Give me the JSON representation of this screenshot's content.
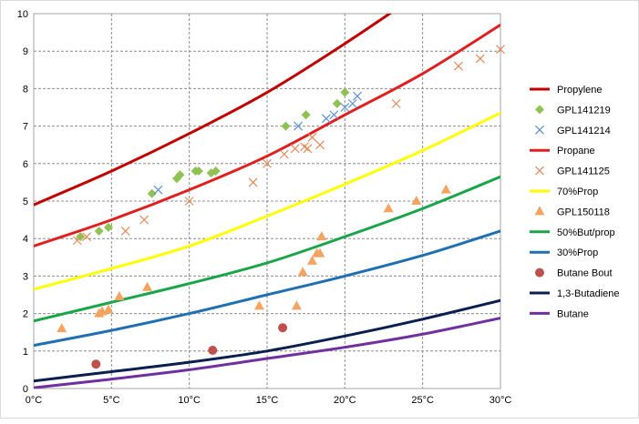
{
  "chart_data": {
    "type": "scatter",
    "title": "",
    "xlabel": "",
    "ylabel": "",
    "xlim": [
      0,
      30
    ],
    "ylim": [
      0,
      10
    ],
    "x_ticks": [
      "0°C",
      "5°C",
      "10°C",
      "15°C",
      "20°C",
      "25°C",
      "30°C"
    ],
    "y_ticks": [
      "0",
      "1",
      "2",
      "3",
      "4",
      "5",
      "6",
      "7",
      "8",
      "9",
      "10"
    ],
    "grid": true,
    "legend_position": "right",
    "series": [
      {
        "name": "Propylene",
        "kind": "line",
        "color": "#c00000",
        "x": [
          0,
          5,
          10,
          15,
          20,
          25
        ],
        "y": [
          4.9,
          5.8,
          6.8,
          7.9,
          9.2,
          10.6
        ]
      },
      {
        "name": "GPL141219",
        "kind": "marker",
        "marker": "diamond",
        "color": "#8fc153",
        "x": [
          3,
          4.2,
          4.8,
          7.6,
          9.2,
          9.4,
          10.4,
          10.6,
          11.4,
          11.7,
          16.2,
          17.5,
          19.5,
          20
        ],
        "y": [
          4.05,
          4.2,
          4.3,
          5.2,
          5.6,
          5.7,
          5.8,
          5.8,
          5.75,
          5.8,
          7.0,
          7.3,
          7.6,
          7.9
        ]
      },
      {
        "name": "GPL141214",
        "kind": "marker",
        "marker": "x",
        "color": "#5b8fd6",
        "x": [
          8,
          17,
          18.8,
          19.3,
          20,
          20.5,
          20.8
        ],
        "y": [
          5.3,
          7.0,
          7.2,
          7.3,
          7.5,
          7.6,
          7.8
        ]
      },
      {
        "name": "Propane",
        "kind": "line",
        "color": "#e02020",
        "x": [
          0,
          5,
          10,
          15,
          20,
          25,
          30
        ],
        "y": [
          3.8,
          4.5,
          5.3,
          6.2,
          7.3,
          8.4,
          9.7
        ]
      },
      {
        "name": "GPL141125",
        "kind": "marker",
        "marker": "x",
        "color": "#e08a5a",
        "x": [
          2.8,
          3.4,
          5.9,
          7.1,
          10,
          14.1,
          15,
          16.1,
          16.8,
          17.4,
          17.6,
          17.9,
          18.4,
          23.3,
          27.3,
          28.7,
          30
        ],
        "y": [
          3.95,
          4.05,
          4.2,
          4.5,
          5.0,
          5.5,
          6.0,
          6.25,
          6.4,
          6.45,
          6.4,
          6.7,
          6.5,
          7.6,
          8.6,
          8.8,
          9.05
        ]
      },
      {
        "name": "70%Prop",
        "kind": "line",
        "color": "#ffff00",
        "x": [
          0,
          5,
          10,
          15,
          20,
          25,
          30
        ],
        "y": [
          2.65,
          3.2,
          3.8,
          4.6,
          5.45,
          6.35,
          7.35
        ]
      },
      {
        "name": "GPL150118",
        "kind": "marker",
        "marker": "triangle",
        "color": "#f4a460",
        "x": [
          1.8,
          4.2,
          4.4,
          4.8,
          5.5,
          7.3,
          14.5,
          16.9,
          17.3,
          17.9,
          18.2,
          18.4,
          18.5,
          22.8,
          24.6,
          26.5
        ],
        "y": [
          1.6,
          2.0,
          2.05,
          2.1,
          2.45,
          2.7,
          2.2,
          2.2,
          3.1,
          3.4,
          3.6,
          3.6,
          4.05,
          4.8,
          5.0,
          5.3
        ]
      },
      {
        "name": "50%But/prop",
        "kind": "line",
        "color": "#1aa54a",
        "x": [
          0,
          5,
          10,
          15,
          20,
          25,
          30
        ],
        "y": [
          1.8,
          2.3,
          2.8,
          3.35,
          4.05,
          4.8,
          5.65
        ]
      },
      {
        "name": "30%Prop",
        "kind": "line",
        "color": "#1f6fb3",
        "x": [
          0,
          5,
          10,
          15,
          20,
          25,
          30
        ],
        "y": [
          1.15,
          1.55,
          2.0,
          2.5,
          3.0,
          3.55,
          4.2
        ]
      },
      {
        "name": "Butane Bout",
        "kind": "marker",
        "marker": "circle",
        "color": "#c0504d",
        "x": [
          4,
          11.5,
          16
        ],
        "y": [
          0.65,
          1.02,
          1.62
        ]
      },
      {
        "name": "1,3-Butadiene",
        "kind": "line",
        "color": "#0a1f4f",
        "x": [
          0,
          5,
          10,
          15,
          20,
          25,
          30
        ],
        "y": [
          0.2,
          0.45,
          0.7,
          1.0,
          1.4,
          1.85,
          2.35
        ]
      },
      {
        "name": "Butane",
        "kind": "line",
        "color": "#7030a0",
        "x": [
          0,
          5,
          10,
          15,
          20,
          25,
          30
        ],
        "y": [
          0.02,
          0.25,
          0.5,
          0.8,
          1.1,
          1.45,
          1.88
        ]
      }
    ]
  }
}
